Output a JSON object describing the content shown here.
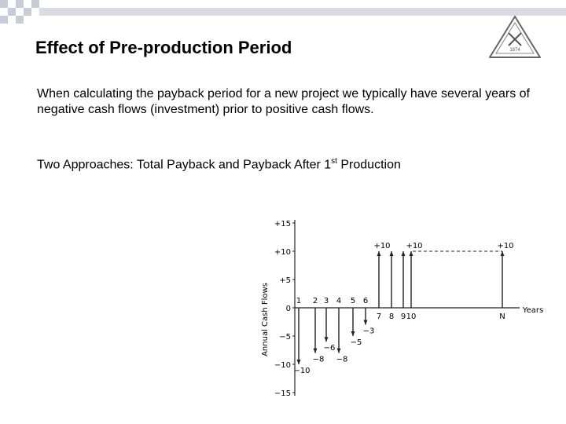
{
  "slide": {
    "title": "Effect of Pre-production Period",
    "paragraph": "When calculating the payback period for a new project we typically have several years of negative cash flows (investment) prior to positive cash flows.",
    "approaches_prefix": "Two Approaches: Total Payback and Payback After 1",
    "approaches_sup": "st",
    "approaches_suffix": " Production"
  },
  "logo": {
    "year_text": "1874"
  },
  "chart_data": {
    "type": "bar",
    "title": "",
    "ylabel": "Annual Cash Flows",
    "xlabel": "Years",
    "ylim": [
      -15,
      15
    ],
    "y_ticks": [
      "+15",
      "+10",
      "+5",
      "0",
      "−5",
      "−10",
      "−15"
    ],
    "x": [
      "1",
      "2",
      "3",
      "4",
      "5",
      "6",
      "7",
      "8",
      "9",
      "10",
      "N"
    ],
    "values": [
      -10,
      -8,
      -6,
      -8,
      -5,
      -3,
      10,
      10,
      10,
      10,
      10
    ],
    "value_labels": [
      "−10",
      "−8",
      "−6",
      "−8",
      "−5",
      "−3",
      "+10",
      "",
      "",
      "+10",
      "+10"
    ],
    "colors": {
      "line": "#222222"
    }
  }
}
